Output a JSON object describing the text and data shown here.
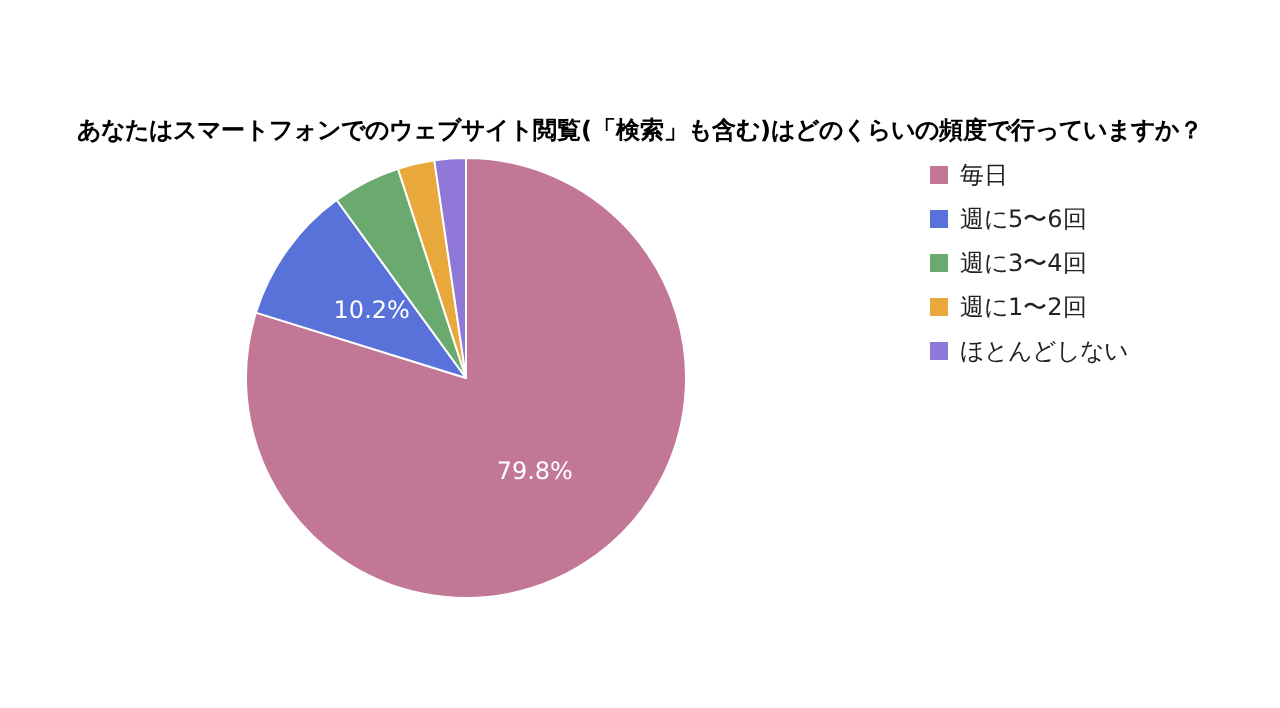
{
  "chart_data": {
    "type": "pie",
    "title": "あなたはスマートフォンでのウェブサイト閲覧(「検索」も含む)はどのくらいの頻度で行っていますか？",
    "categories": [
      "毎日",
      "週に5〜6回",
      "週に3〜4回",
      "週に1〜2回",
      "ほとんどしない"
    ],
    "values": [
      79.8,
      10.2,
      5.0,
      2.7,
      2.3
    ],
    "value_labels": [
      "79.8%",
      "10.2%",
      null,
      null,
      null
    ],
    "colors": [
      "#c27797",
      "#5872d9",
      "#6aaa6e",
      "#e9a83b",
      "#8f78d8"
    ],
    "legend": "right"
  }
}
